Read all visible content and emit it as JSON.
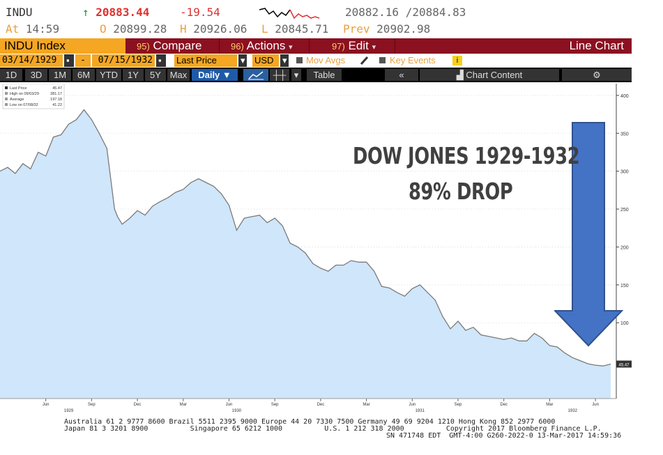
{
  "header": {
    "ticker": "INDU",
    "up_arrow": "↑",
    "last": "20883.44",
    "change": "-19.54",
    "bid_ask": "20882.16 /20884.83",
    "at_label": "At",
    "time": "14:59",
    "open_label": "O",
    "open": "20899.28",
    "high_label": "H",
    "high": "20926.06",
    "low_label": "L",
    "low": "20845.71",
    "prev_label": "Prev",
    "prev": "20902.98"
  },
  "toolbar": {
    "security": "INDU Index",
    "compare_num": "95)",
    "compare": "Compare",
    "actions_num": "96)",
    "actions": "Actions",
    "edit_num": "97)",
    "edit": "Edit",
    "chart_type": "Line Chart",
    "start_date": "03/14/1929",
    "dash": "-",
    "end_date": "07/15/1932",
    "field": "Last Price",
    "currency": "USD",
    "mov_avgs": "Mov Avgs",
    "key_events": "Key Events",
    "info_icon": "i",
    "periods": [
      "1D",
      "3D",
      "1M",
      "6M",
      "YTD",
      "1Y",
      "5Y",
      "Max"
    ],
    "frequency": "Daily ▼",
    "table": "Table",
    "collapse": "«",
    "chart_content": "Chart Content"
  },
  "legend": {
    "rows": [
      {
        "label": "Last Price",
        "value": "45.47"
      },
      {
        "label": "High on 09/03/29",
        "value": "381.17"
      },
      {
        "label": "Average",
        "value": "197.18"
      },
      {
        "label": "Low on 07/08/32",
        "value": "41.22"
      }
    ]
  },
  "overlay": {
    "line1": "DOW JONES 1929-1932",
    "line2": "89% DROP"
  },
  "price_tag": "45.47",
  "footer": {
    "line1": "Australia 61 2 9777 8600 Brazil 5511 2395 9000 Europe 44 20 7330 7500 Germany 49 69 9204 1210 Hong Kong 852 2977 6000",
    "line2": "Japan 81 3 3201 8900          Singapore 65 6212 1000          U.S. 1 212 318 2000          Copyright 2017 Bloomberg Finance L.P.",
    "line3": "SN 471748 EDT  GMT-4:00 G260-2022-0 13-Mar-2017 14:59:36"
  },
  "colors": {
    "area_fill": "#cfe6fb",
    "line": "#7a7a7a",
    "arrow": "#4472c4",
    "red_bar": "#8b1020",
    "orange": "#f5a623"
  },
  "chart_data": {
    "type": "area",
    "ylim": [
      0,
      410
    ],
    "yticks": [
      100,
      150,
      200,
      250,
      300,
      350,
      400
    ],
    "xlim": [
      0,
      40
    ],
    "x_tick_labels": [
      "Jun",
      "Sep",
      "Dec",
      "Mar",
      "Jun",
      "Sep",
      "Dec",
      "Mar",
      "Jun",
      "Sep",
      "Dec",
      "Mar",
      "Jun"
    ],
    "x_tick_positions": [
      3,
      6,
      9,
      12,
      15,
      18,
      21,
      24,
      27,
      30,
      33,
      36,
      39
    ],
    "year_labels": [
      {
        "label": "1929",
        "x": 4.5
      },
      {
        "label": "1930",
        "x": 15.5
      },
      {
        "label": "1931",
        "x": 27.5
      },
      {
        "label": "1932",
        "x": 37.5
      }
    ],
    "series": [
      {
        "x": [
          0,
          0.5,
          1,
          1.5,
          2,
          2.5,
          3,
          3.5,
          4,
          4.5,
          5,
          5.5,
          6,
          6.5,
          7,
          7.5,
          7.7,
          8,
          8.5,
          9,
          9.5,
          10,
          10.5,
          11,
          11.5,
          12,
          12.5,
          13,
          13.5,
          14,
          14.5,
          15,
          15.5,
          16,
          16.5,
          17,
          17.5,
          18,
          18.5,
          19,
          19.5,
          20,
          20.5,
          21,
          21.5,
          22,
          22.5,
          23,
          23.5,
          24,
          24.5,
          25,
          25.5,
          26,
          26.5,
          27,
          27.5,
          28,
          28.5,
          29,
          29.5,
          30,
          30.5,
          31,
          31.5,
          32,
          32.5,
          33,
          33.5,
          34,
          34.5,
          35,
          35.5,
          36,
          36.5,
          37,
          37.5,
          38,
          38.5,
          39,
          39.5,
          40
        ],
        "y": [
          300,
          305,
          297,
          310,
          303,
          325,
          320,
          345,
          348,
          362,
          368,
          381,
          368,
          350,
          330,
          250,
          240,
          230,
          238,
          248,
          242,
          254,
          260,
          265,
          272,
          276,
          285,
          290,
          285,
          280,
          270,
          255,
          222,
          238,
          240,
          242,
          232,
          238,
          228,
          205,
          200,
          192,
          178,
          172,
          168,
          176,
          176,
          182,
          180,
          180,
          168,
          148,
          146,
          140,
          135,
          145,
          150,
          140,
          130,
          108,
          92,
          102,
          90,
          94,
          84,
          82,
          80,
          78,
          80,
          76,
          76,
          86,
          80,
          70,
          68,
          60,
          54,
          50,
          46,
          44,
          43,
          45.5
        ]
      }
    ]
  }
}
